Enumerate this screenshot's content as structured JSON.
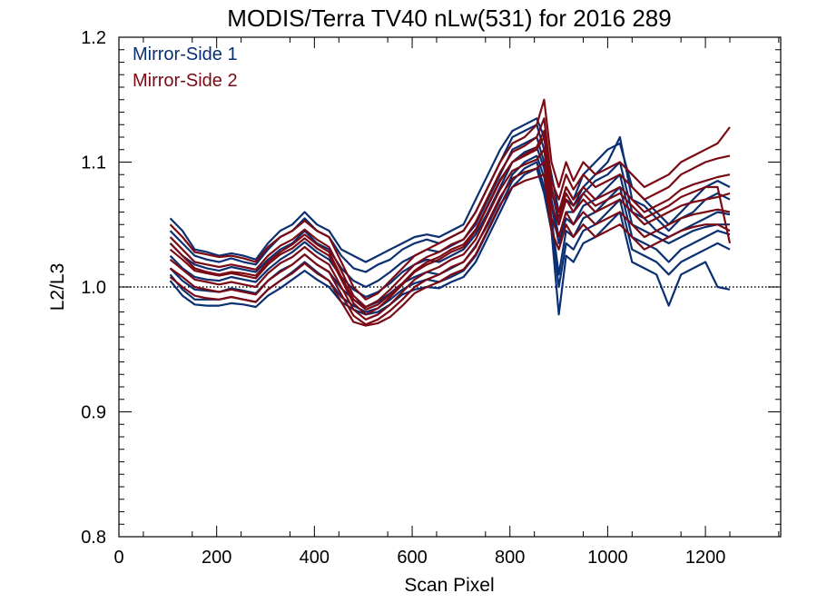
{
  "chart_data": {
    "type": "line",
    "title": "MODIS/Terra TV40 nLw(531) for 2016 289",
    "xlabel": "Scan Pixel",
    "ylabel": "L2/L3",
    "xlim": [
      0,
      1354
    ],
    "ylim": [
      0.8,
      1.2
    ],
    "xticks": [
      0,
      200,
      400,
      600,
      800,
      1000,
      1200
    ],
    "xtick_labels": [
      "0",
      "200",
      "400",
      "600",
      "800",
      "1000",
      "1200"
    ],
    "yticks": [
      0.8,
      0.9,
      1.0,
      1.1,
      1.2
    ],
    "ytick_labels": [
      "0.8",
      "0.9",
      "1.0",
      "1.1",
      "1.2"
    ],
    "reference_line": 1.0,
    "grid": false,
    "legend_position": "top-left",
    "colors": {
      "mirror_side_1": "#0a2f72",
      "mirror_side_2": "#7a0a14"
    },
    "x": [
      105,
      130,
      155,
      180,
      205,
      230,
      255,
      280,
      305,
      330,
      355,
      380,
      405,
      430,
      455,
      480,
      505,
      530,
      555,
      580,
      605,
      630,
      655,
      680,
      705,
      730,
      755,
      780,
      805,
      830,
      855,
      870,
      885,
      900,
      915,
      930,
      950,
      975,
      1000,
      1025,
      1050,
      1075,
      1100,
      1125,
      1150,
      1175,
      1200,
      1225,
      1250
    ],
    "series": [
      {
        "name": "Mirror-Side 1",
        "values": [
          1.055,
          1.045,
          1.03,
          1.028,
          1.025,
          1.027,
          1.025,
          1.022,
          1.035,
          1.045,
          1.05,
          1.06,
          1.05,
          1.045,
          1.03,
          1.025,
          1.02,
          1.025,
          1.03,
          1.035,
          1.04,
          1.042,
          1.04,
          1.045,
          1.05,
          1.07,
          1.09,
          1.11,
          1.125,
          1.13,
          1.135,
          1.12,
          1.09,
          1.06,
          1.08,
          1.07,
          1.09,
          1.1,
          1.11,
          1.115,
          1.08,
          1.07,
          1.06,
          1.05,
          1.06,
          1.07,
          1.08,
          1.085,
          1.08
        ]
      },
      {
        "name": "Mirror-Side 1",
        "values": [
          1.045,
          1.035,
          1.025,
          1.022,
          1.02,
          1.023,
          1.02,
          1.018,
          1.03,
          1.04,
          1.045,
          1.055,
          1.045,
          1.04,
          1.025,
          1.015,
          1.012,
          1.018,
          1.022,
          1.03,
          1.035,
          1.038,
          1.035,
          1.04,
          1.045,
          1.06,
          1.08,
          1.1,
          1.12,
          1.125,
          1.13,
          1.11,
          1.08,
          1.05,
          1.07,
          1.065,
          1.08,
          1.09,
          1.1,
          1.12,
          1.07,
          1.065,
          1.055,
          1.045,
          1.055,
          1.06,
          1.07,
          1.075,
          1.07
        ]
      },
      {
        "name": "Mirror-Side 1",
        "values": [
          1.035,
          1.025,
          1.018,
          1.015,
          1.013,
          1.016,
          1.014,
          1.012,
          1.022,
          1.03,
          1.035,
          1.045,
          1.035,
          1.03,
          1.015,
          1.005,
          1.0,
          1.005,
          1.012,
          1.02,
          1.025,
          1.03,
          1.028,
          1.033,
          1.038,
          1.05,
          1.07,
          1.09,
          1.11,
          1.115,
          1.12,
          1.1,
          1.07,
          1.04,
          1.06,
          1.06,
          1.075,
          1.085,
          1.09,
          1.1,
          1.06,
          1.055,
          1.045,
          1.04,
          1.045,
          1.05,
          1.055,
          1.06,
          1.058
        ]
      },
      {
        "name": "Mirror-Side 1",
        "values": [
          1.025,
          1.015,
          1.008,
          1.006,
          1.005,
          1.008,
          1.006,
          1.004,
          1.014,
          1.022,
          1.028,
          1.036,
          1.028,
          1.022,
          1.008,
          0.998,
          0.992,
          0.996,
          1.003,
          1.012,
          1.018,
          1.022,
          1.02,
          1.025,
          1.03,
          1.042,
          1.06,
          1.08,
          1.1,
          1.108,
          1.112,
          1.095,
          1.065,
          1.035,
          1.055,
          1.05,
          1.065,
          1.07,
          1.08,
          1.09,
          1.05,
          1.045,
          1.04,
          1.035,
          1.04,
          1.045,
          1.048,
          1.05,
          1.05
        ]
      },
      {
        "name": "Mirror-Side 1",
        "values": [
          1.015,
          1.005,
          0.998,
          0.997,
          0.996,
          0.999,
          0.997,
          0.995,
          1.005,
          1.013,
          1.018,
          1.026,
          1.018,
          1.012,
          0.999,
          0.99,
          0.984,
          0.988,
          0.995,
          1.003,
          1.008,
          1.012,
          1.01,
          1.015,
          1.02,
          1.033,
          1.05,
          1.07,
          1.09,
          1.1,
          1.105,
          1.088,
          1.055,
          1.01,
          1.045,
          1.04,
          1.055,
          1.06,
          1.07,
          1.08,
          1.04,
          1.035,
          1.03,
          1.02,
          1.03,
          1.035,
          1.04,
          1.045,
          1.042
        ]
      },
      {
        "name": "Mirror-Side 1",
        "values": [
          1.01,
          0.998,
          0.99,
          0.99,
          0.99,
          0.992,
          0.99,
          0.988,
          0.998,
          1.005,
          1.012,
          1.02,
          1.012,
          1.005,
          0.992,
          0.985,
          0.98,
          0.983,
          0.99,
          0.998,
          1.003,
          1.006,
          1.004,
          1.008,
          1.013,
          1.025,
          1.045,
          1.065,
          1.085,
          1.095,
          1.1,
          1.08,
          1.05,
          1.0,
          1.035,
          1.03,
          1.045,
          1.05,
          1.06,
          1.07,
          1.03,
          1.025,
          1.02,
          1.01,
          1.02,
          1.025,
          1.03,
          1.035,
          1.03
        ]
      },
      {
        "name": "Mirror-Side 1",
        "values": [
          1.005,
          0.993,
          0.986,
          0.985,
          0.985,
          0.987,
          0.986,
          0.984,
          0.993,
          0.999,
          1.006,
          1.013,
          1.006,
          1.0,
          0.988,
          0.982,
          0.978,
          0.98,
          0.986,
          0.994,
          0.998,
          1.0,
          0.999,
          1.004,
          1.008,
          1.02,
          1.04,
          1.06,
          1.08,
          1.09,
          1.095,
          1.075,
          1.045,
          0.978,
          1.025,
          1.02,
          1.035,
          1.04,
          1.05,
          1.06,
          1.02,
          1.015,
          1.01,
          0.985,
          1.01,
          1.015,
          1.02,
          1.0,
          0.998
        ]
      },
      {
        "name": "Mirror-Side 2",
        "values": [
          1.05,
          1.04,
          1.028,
          1.026,
          1.024,
          1.025,
          1.023,
          1.02,
          1.032,
          1.04,
          1.045,
          1.053,
          1.045,
          1.04,
          1.02,
          1.0,
          0.99,
          0.995,
          1.005,
          1.015,
          1.025,
          1.03,
          1.035,
          1.04,
          1.045,
          1.06,
          1.08,
          1.1,
          1.115,
          1.12,
          1.13,
          1.15,
          1.1,
          1.08,
          1.1,
          1.085,
          1.1,
          1.09,
          1.095,
          1.1,
          1.09,
          1.08,
          1.085,
          1.09,
          1.1,
          1.105,
          1.11,
          1.115,
          1.128
        ]
      },
      {
        "name": "Mirror-Side 2",
        "values": [
          1.04,
          1.03,
          1.02,
          1.018,
          1.016,
          1.018,
          1.016,
          1.014,
          1.025,
          1.033,
          1.038,
          1.046,
          1.038,
          1.032,
          1.013,
          0.993,
          0.984,
          0.989,
          0.998,
          1.008,
          1.018,
          1.024,
          1.028,
          1.034,
          1.038,
          1.052,
          1.072,
          1.092,
          1.108,
          1.113,
          1.12,
          1.135,
          1.085,
          1.07,
          1.09,
          1.078,
          1.09,
          1.08,
          1.085,
          1.09,
          1.08,
          1.07,
          1.075,
          1.08,
          1.09,
          1.095,
          1.1,
          1.103,
          1.105
        ]
      },
      {
        "name": "Mirror-Side 2",
        "values": [
          1.03,
          1.022,
          1.013,
          1.011,
          1.009,
          1.011,
          1.009,
          1.007,
          1.018,
          1.026,
          1.031,
          1.039,
          1.031,
          1.025,
          1.006,
          0.987,
          0.978,
          0.983,
          0.992,
          1.002,
          1.012,
          1.018,
          1.022,
          1.028,
          1.032,
          1.045,
          1.065,
          1.085,
          1.1,
          1.105,
          1.11,
          1.12,
          1.075,
          1.06,
          1.08,
          1.07,
          1.08,
          1.07,
          1.075,
          1.08,
          1.07,
          1.06,
          1.065,
          1.07,
          1.078,
          1.082,
          1.085,
          1.088,
          1.09
        ]
      },
      {
        "name": "Mirror-Side 2",
        "values": [
          1.022,
          1.014,
          1.006,
          1.004,
          1.002,
          1.004,
          1.002,
          1.0,
          1.011,
          1.019,
          1.024,
          1.032,
          1.024,
          1.018,
          1.0,
          0.982,
          0.974,
          0.978,
          0.986,
          0.996,
          1.006,
          1.012,
          1.016,
          1.022,
          1.026,
          1.038,
          1.058,
          1.078,
          1.093,
          1.098,
          1.102,
          1.11,
          1.065,
          1.05,
          1.07,
          1.06,
          1.07,
          1.06,
          1.065,
          1.07,
          1.06,
          1.05,
          1.055,
          1.06,
          1.065,
          1.068,
          1.07,
          1.072,
          1.075
        ]
      },
      {
        "name": "Mirror-Side 2",
        "values": [
          1.015,
          1.008,
          1.0,
          0.998,
          0.996,
          0.998,
          0.996,
          0.994,
          1.005,
          1.012,
          1.018,
          1.026,
          1.018,
          1.012,
          0.994,
          0.977,
          0.97,
          0.974,
          0.981,
          0.99,
          1.0,
          1.006,
          1.01,
          1.016,
          1.02,
          1.032,
          1.052,
          1.072,
          1.087,
          1.092,
          1.095,
          1.1,
          1.055,
          1.04,
          1.06,
          1.05,
          1.06,
          1.05,
          1.055,
          1.06,
          1.05,
          1.04,
          1.045,
          1.05,
          1.055,
          1.058,
          1.06,
          1.062,
          1.06
        ]
      },
      {
        "name": "Mirror-Side 2",
        "values": [
          1.008,
          1.0,
          0.993,
          0.991,
          0.99,
          0.992,
          0.99,
          0.988,
          0.998,
          1.005,
          1.011,
          1.019,
          1.011,
          1.005,
          0.988,
          0.972,
          0.969,
          0.971,
          0.976,
          0.985,
          0.995,
          1.0,
          1.004,
          1.01,
          1.014,
          1.026,
          1.046,
          1.066,
          1.08,
          1.085,
          1.088,
          1.09,
          1.045,
          1.03,
          1.05,
          1.04,
          1.05,
          1.04,
          1.045,
          1.05,
          1.04,
          1.03,
          1.035,
          1.04,
          1.045,
          1.048,
          1.05,
          1.05,
          1.045
        ]
      },
      {
        "name": "Mirror-Side 2",
        "values": [
          1.035,
          1.025,
          1.015,
          1.012,
          1.01,
          1.012,
          1.011,
          1.009,
          1.02,
          1.028,
          1.034,
          1.042,
          1.034,
          1.028,
          1.008,
          0.99,
          0.982,
          0.986,
          0.994,
          1.003,
          1.013,
          1.02,
          1.024,
          1.03,
          1.034,
          1.046,
          1.066,
          1.086,
          1.1,
          1.106,
          1.112,
          1.125,
          1.08,
          1.055,
          1.075,
          1.065,
          1.075,
          1.065,
          1.07,
          1.075,
          1.065,
          1.055,
          1.06,
          1.065,
          1.072,
          1.076,
          1.08,
          1.08,
          1.035
        ]
      }
    ]
  },
  "legend": [
    {
      "label": "Mirror-Side 1",
      "color": "#0a2f72"
    },
    {
      "label": "Mirror-Side 2",
      "color": "#7a0a14"
    }
  ]
}
